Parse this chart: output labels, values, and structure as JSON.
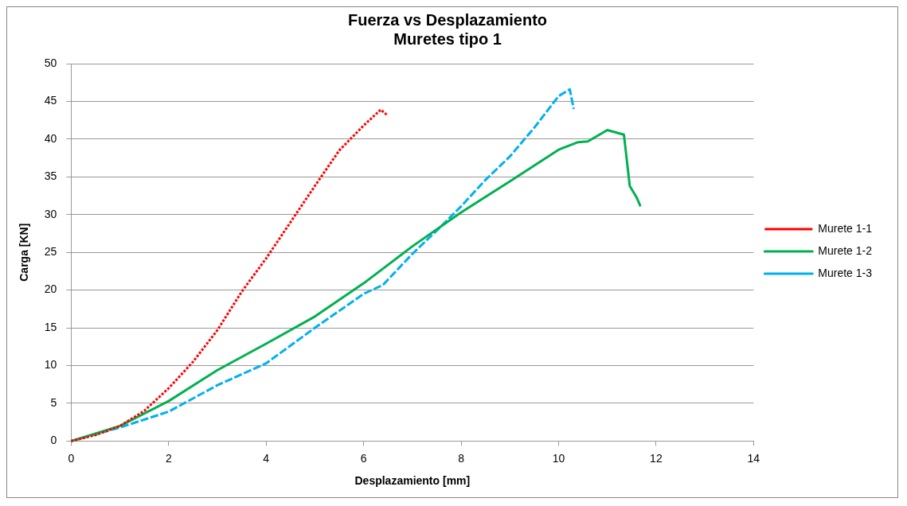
{
  "chart_data": {
    "type": "line",
    "title": "Fuerza vs Desplazamiento\nMuretes tipo 1",
    "xlabel": "Desplazamiento [mm]",
    "ylabel": "Carga [KN]",
    "xlim": [
      0,
      14
    ],
    "xticks": [
      0,
      2,
      4,
      6,
      8,
      10,
      12,
      14
    ],
    "ylim": [
      0,
      50
    ],
    "yticks": [
      0,
      5,
      10,
      15,
      20,
      25,
      30,
      35,
      40,
      45,
      50
    ],
    "grid": "y",
    "legend": "right",
    "marker": "none",
    "series": [
      {
        "name": "Murete 1-1",
        "color": "#ff0000",
        "line_style": "dotted",
        "x": [
          0,
          0.5,
          1,
          1.5,
          2,
          2.5,
          3,
          3.5,
          4,
          4.5,
          5,
          5.5,
          6,
          6.35,
          6.5
        ],
        "values": [
          0,
          0.8,
          2,
          4,
          7,
          10.5,
          14.7,
          19.8,
          24.2,
          29,
          33.8,
          38.5,
          41.8,
          43.9,
          43.1
        ]
      },
      {
        "name": "Murete 1-2",
        "color": "#00b050",
        "line_style": "solid",
        "x": [
          0,
          1,
          2,
          3,
          4,
          5,
          6,
          7,
          8,
          9,
          10,
          10.4,
          10.6,
          11,
          11.34,
          11.46,
          11.6,
          11.68
        ],
        "values": [
          0,
          2,
          5.3,
          9.4,
          12.9,
          16.5,
          20.9,
          25.8,
          30.3,
          34.4,
          38.6,
          39.6,
          39.7,
          41.2,
          40.6,
          33.8,
          32.3,
          31.1
        ]
      },
      {
        "name": "Murete 1-3",
        "color": "#00b0f0",
        "line_style": "dashed",
        "x": [
          0,
          1,
          2,
          3,
          4,
          5,
          6,
          6.4,
          7,
          7.55,
          8,
          8.5,
          9,
          9.5,
          10,
          10.23,
          10.31
        ],
        "values": [
          0,
          1.8,
          3.9,
          7.4,
          10.3,
          15,
          19.5,
          20.7,
          24.8,
          28.2,
          31.1,
          34.6,
          37.7,
          41.5,
          45.7,
          46.6,
          44
        ]
      }
    ]
  }
}
